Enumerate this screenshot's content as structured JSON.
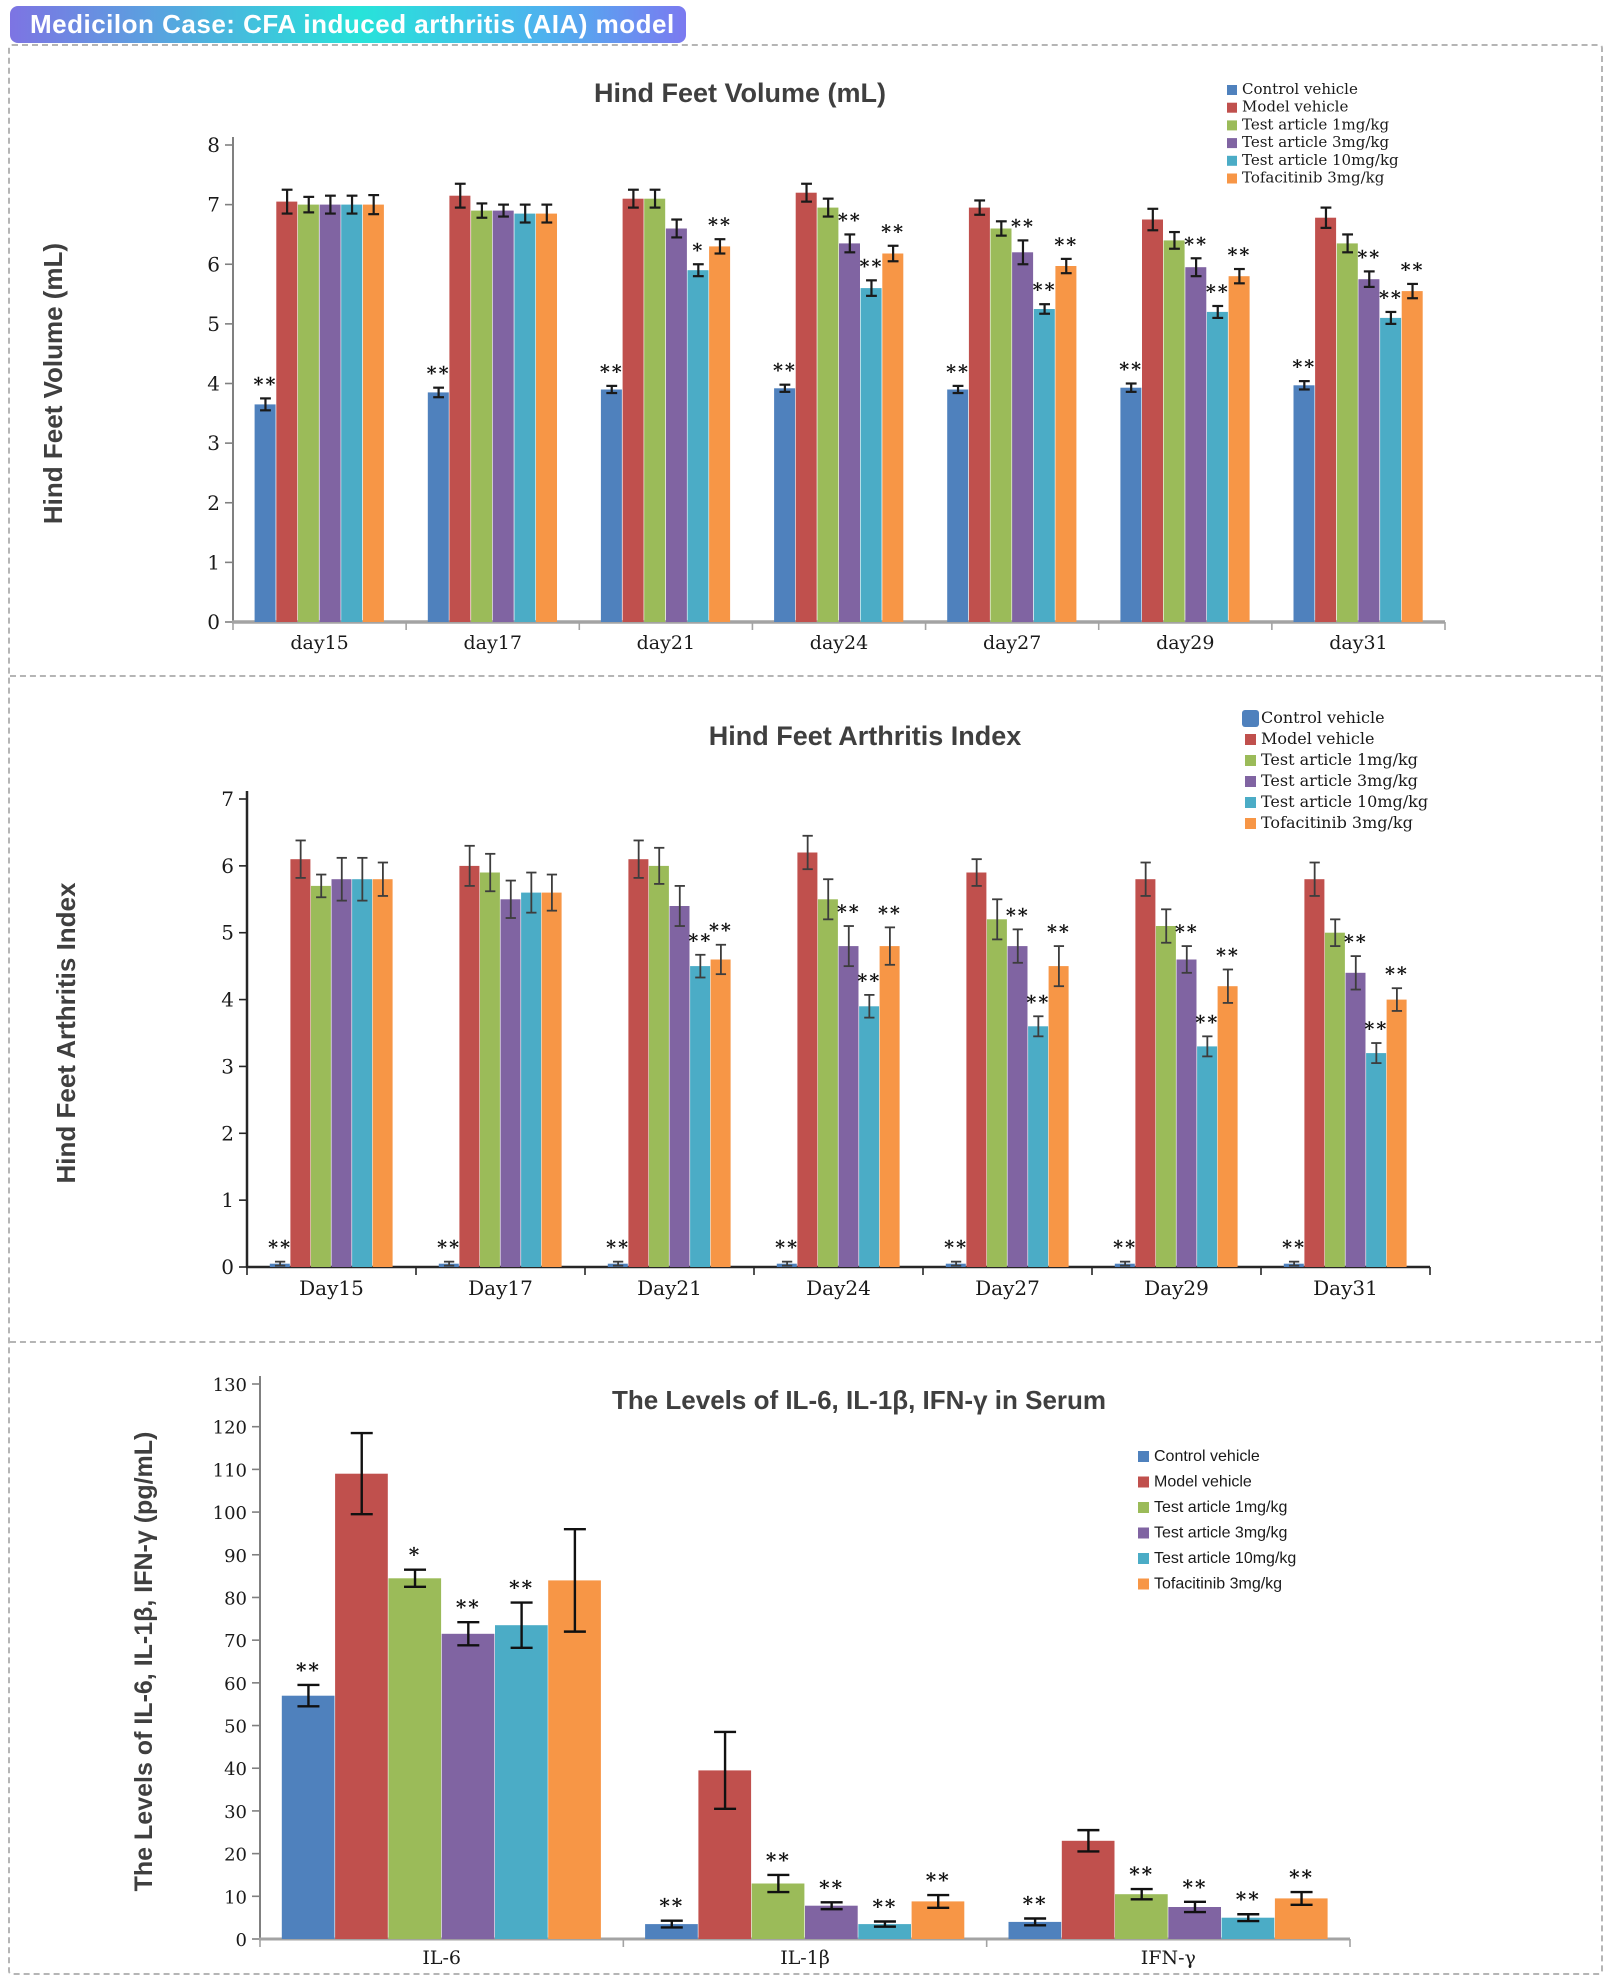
{
  "banner": {
    "title": "Medicilon Case: CFA induced arthritis (AIA) model",
    "text_color": "#ffffff",
    "gradient": [
      "#7d74e3",
      "#27e3da",
      "#7b7af0"
    ]
  },
  "legend_labels": [
    "Control vehicle",
    "Model vehicle",
    "Test article 1mg/kg",
    "Test article 3mg/kg",
    "Test article 10mg/kg",
    "Tofacitinib 3mg/kg"
  ],
  "series_colors": [
    "#4F81BD",
    "#C0504D",
    "#9BBB59",
    "#8064A2",
    "#4BACC6",
    "#F79646"
  ],
  "chart_data": [
    {
      "type": "bar",
      "title": "Hind Feet Volume (mL)",
      "ylabel": "Hind Feet Volume (mL)",
      "ylim": [
        0,
        8
      ],
      "ytick_step": 1,
      "grid": false,
      "legend_position": "top-right",
      "categories": [
        "day15",
        "day17",
        "day21",
        "day24",
        "day27",
        "day29",
        "day31"
      ],
      "series": [
        {
          "name": "Control vehicle",
          "color": "#4F81BD",
          "values": [
            3.65,
            3.85,
            3.9,
            3.92,
            3.9,
            3.93,
            3.97
          ],
          "errors": [
            0.1,
            0.08,
            0.06,
            0.06,
            0.06,
            0.07,
            0.07
          ],
          "sig": [
            "**",
            "**",
            "**",
            "**",
            "**",
            "**",
            "**"
          ]
        },
        {
          "name": "Model vehicle",
          "color": "#C0504D",
          "values": [
            7.05,
            7.15,
            7.1,
            7.2,
            6.95,
            6.75,
            6.78
          ],
          "errors": [
            0.2,
            0.2,
            0.15,
            0.15,
            0.12,
            0.18,
            0.17
          ],
          "sig": [
            "",
            "",
            "",
            "",
            "",
            "",
            ""
          ]
        },
        {
          "name": "Test article 1mg/kg",
          "color": "#9BBB59",
          "values": [
            7.0,
            6.9,
            7.1,
            6.95,
            6.6,
            6.4,
            6.35
          ],
          "errors": [
            0.13,
            0.12,
            0.15,
            0.15,
            0.12,
            0.14,
            0.15
          ],
          "sig": [
            "",
            "",
            "",
            "",
            "",
            "",
            ""
          ]
        },
        {
          "name": "Test article 3mg/kg",
          "color": "#8064A2",
          "values": [
            7.0,
            6.9,
            6.6,
            6.35,
            6.2,
            5.95,
            5.75
          ],
          "errors": [
            0.15,
            0.1,
            0.15,
            0.15,
            0.2,
            0.15,
            0.13
          ],
          "sig": [
            "",
            "",
            "",
            "**",
            "**",
            "**",
            "**"
          ]
        },
        {
          "name": "Test article 10mg/kg",
          "color": "#4BACC6",
          "values": [
            7.0,
            6.85,
            5.9,
            5.6,
            5.25,
            5.2,
            5.1
          ],
          "errors": [
            0.15,
            0.15,
            0.1,
            0.13,
            0.08,
            0.1,
            0.1
          ],
          "sig": [
            "",
            "",
            "*",
            "**",
            "**",
            "**",
            "**"
          ]
        },
        {
          "name": "Tofacitinib 3mg/kg",
          "color": "#F79646",
          "values": [
            7.0,
            6.85,
            6.3,
            6.18,
            5.97,
            5.8,
            5.55
          ],
          "errors": [
            0.16,
            0.15,
            0.12,
            0.13,
            0.12,
            0.12,
            0.12
          ],
          "sig": [
            "",
            "",
            "**",
            "**",
            "**",
            "**",
            "**"
          ]
        }
      ]
    },
    {
      "type": "bar",
      "title": "Hind Feet Arthritis Index",
      "ylabel": "Hind Feet Arthritis Index",
      "ylim": [
        0,
        7
      ],
      "ytick_step": 1,
      "grid": false,
      "legend_position": "top-right",
      "categories": [
        "Day15",
        "Day17",
        "Day21",
        "Day24",
        "Day27",
        "Day29",
        "Day31"
      ],
      "series": [
        {
          "name": "Control vehicle",
          "color": "#4F81BD",
          "values": [
            0.05,
            0.05,
            0.05,
            0.05,
            0.05,
            0.05,
            0.05
          ],
          "errors": [
            0.03,
            0.03,
            0.03,
            0.03,
            0.03,
            0.03,
            0.03
          ],
          "sig": [
            "**",
            "**",
            "**",
            "**",
            "**",
            "**",
            "**"
          ]
        },
        {
          "name": "Model vehicle",
          "color": "#C0504D",
          "values": [
            6.1,
            6.0,
            6.1,
            6.2,
            5.9,
            5.8,
            5.8
          ],
          "errors": [
            0.28,
            0.3,
            0.28,
            0.25,
            0.2,
            0.25,
            0.25
          ],
          "sig": [
            "",
            "",
            "",
            "",
            "",
            "",
            ""
          ]
        },
        {
          "name": "Test article 1mg/kg",
          "color": "#9BBB59",
          "values": [
            5.7,
            5.9,
            6.0,
            5.5,
            5.2,
            5.1,
            5.0
          ],
          "errors": [
            0.17,
            0.28,
            0.27,
            0.3,
            0.3,
            0.25,
            0.2
          ],
          "sig": [
            "",
            "",
            "",
            "",
            "",
            "",
            ""
          ]
        },
        {
          "name": "Test article 3mg/kg",
          "color": "#8064A2",
          "values": [
            5.8,
            5.5,
            5.4,
            4.8,
            4.8,
            4.6,
            4.4
          ],
          "errors": [
            0.32,
            0.28,
            0.3,
            0.3,
            0.25,
            0.2,
            0.25
          ],
          "sig": [
            "",
            "",
            "",
            "**",
            "**",
            "**",
            "**"
          ]
        },
        {
          "name": "Test article 10mg/kg",
          "color": "#4BACC6",
          "values": [
            5.8,
            5.6,
            4.5,
            3.9,
            3.6,
            3.3,
            3.2
          ],
          "errors": [
            0.32,
            0.3,
            0.17,
            0.17,
            0.15,
            0.15,
            0.15
          ],
          "sig": [
            "",
            "",
            "**",
            "**",
            "**",
            "**",
            "**"
          ]
        },
        {
          "name": "Tofacitinib 3mg/kg",
          "color": "#F79646",
          "values": [
            5.8,
            5.6,
            4.6,
            4.8,
            4.5,
            4.2,
            4.0
          ],
          "errors": [
            0.25,
            0.27,
            0.22,
            0.28,
            0.3,
            0.25,
            0.17
          ],
          "sig": [
            "",
            "",
            "**",
            "**",
            "**",
            "**",
            "**"
          ]
        }
      ]
    },
    {
      "type": "bar",
      "title": "The Levels of IL-6, IL-1β, IFN-γ in Serum",
      "ylabel": "The Levels of IL-6, IL-1β, IFN-γ  (pg/mL)",
      "ylim": [
        0,
        130
      ],
      "ytick_step": 10,
      "grid": false,
      "legend_position": "right",
      "categories": [
        "IL-6",
        "IL-1β",
        "IFN-γ"
      ],
      "series": [
        {
          "name": "Control vehicle",
          "color": "#4F81BD",
          "values": [
            57,
            3.5,
            4
          ],
          "errors": [
            2.5,
            0.8,
            0.8
          ],
          "sig": [
            "**",
            "**",
            "**"
          ]
        },
        {
          "name": "Model vehicle",
          "color": "#C0504D",
          "values": [
            109,
            39.5,
            23
          ],
          "errors": [
            9.5,
            9,
            2.5
          ],
          "sig": [
            "",
            "",
            ""
          ]
        },
        {
          "name": "Test article 1mg/kg",
          "color": "#9BBB59",
          "values": [
            84.5,
            13,
            10.5
          ],
          "errors": [
            2,
            2,
            1.2
          ],
          "sig": [
            "*",
            "**",
            "**"
          ]
        },
        {
          "name": "Test article 3mg/kg",
          "color": "#8064A2",
          "values": [
            71.5,
            7.8,
            7.5
          ],
          "errors": [
            2.7,
            0.8,
            1.2
          ],
          "sig": [
            "**",
            "**",
            "**"
          ]
        },
        {
          "name": "Test article 10mg/kg",
          "color": "#4BACC6",
          "values": [
            73.5,
            3.5,
            5
          ],
          "errors": [
            5.3,
            0.6,
            0.8
          ],
          "sig": [
            "**",
            "**",
            "**"
          ]
        },
        {
          "name": "Tofacitinib 3mg/kg",
          "color": "#F79646",
          "values": [
            84,
            8.8,
            9.5
          ],
          "errors": [
            12,
            1.5,
            1.5
          ],
          "sig": [
            "",
            "**",
            "**"
          ]
        }
      ]
    }
  ]
}
